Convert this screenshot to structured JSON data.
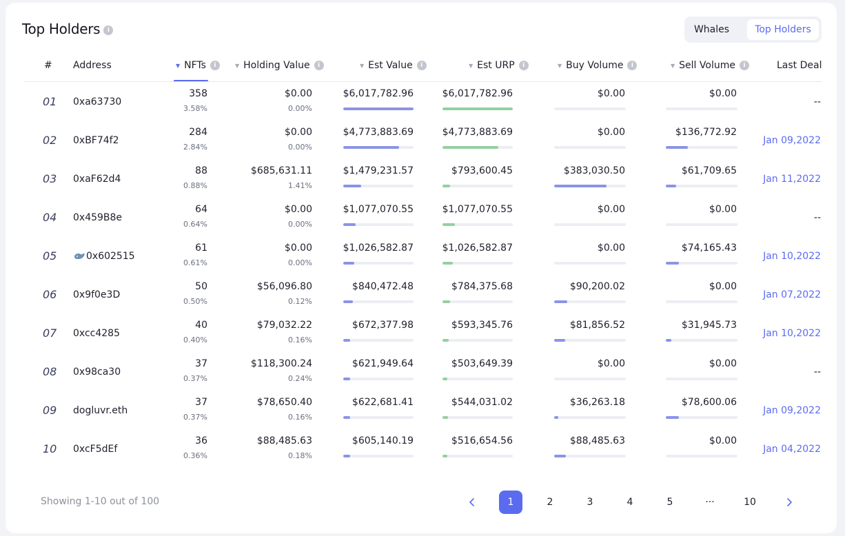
{
  "header": {
    "title": "Top Holders",
    "tabs": [
      {
        "label": "Whales",
        "active": false
      },
      {
        "label": "Top Holders",
        "active": true
      }
    ]
  },
  "columns": {
    "rank": "#",
    "address": "Address",
    "nfts": "NFTs",
    "holding_value": "Holding Value",
    "est_value": "Est Value",
    "est_urp": "Est URP",
    "buy_volume": "Buy Volume",
    "sell_volume": "Sell Volume",
    "last_deal": "Last Deal",
    "sorted_by": "NFTs"
  },
  "rows": [
    {
      "rank": "01",
      "address": "0xa63730",
      "whale": false,
      "nfts": "358",
      "nfts_pct": "3.58%",
      "holding_value": "$0.00",
      "holding_pct": "0.00%",
      "est_value": "$6,017,782.96",
      "est_value_level": 1.0,
      "est_urp": "$6,017,782.96",
      "est_urp_level": 1.0,
      "buy_volume": "$0.00",
      "buy_level": 0,
      "sell_volume": "$0.00",
      "sell_level": 0,
      "last_deal": "--"
    },
    {
      "rank": "02",
      "address": "0xBF74f2",
      "whale": false,
      "nfts": "284",
      "nfts_pct": "2.84%",
      "holding_value": "$0.00",
      "holding_pct": "0.00%",
      "est_value": "$4,773,883.69",
      "est_value_level": 0.79,
      "est_urp": "$4,773,883.69",
      "est_urp_level": 0.79,
      "buy_volume": "$0.00",
      "buy_level": 0,
      "sell_volume": "$136,772.92",
      "sell_level": 0.31,
      "last_deal": "Jan 09,2022"
    },
    {
      "rank": "03",
      "address": "0xaF62d4",
      "whale": false,
      "nfts": "88",
      "nfts_pct": "0.88%",
      "holding_value": "$685,631.11",
      "holding_pct": "1.41%",
      "est_value": "$1,479,231.57",
      "est_value_level": 0.25,
      "est_urp": "$793,600.45",
      "est_urp_level": 0.11,
      "buy_volume": "$383,030.50",
      "buy_level": 0.73,
      "sell_volume": "$61,709.65",
      "sell_level": 0.14,
      "last_deal": "Jan 11,2022"
    },
    {
      "rank": "04",
      "address": "0x459B8e",
      "whale": false,
      "nfts": "64",
      "nfts_pct": "0.64%",
      "holding_value": "$0.00",
      "holding_pct": "0.00%",
      "est_value": "$1,077,070.55",
      "est_value_level": 0.18,
      "est_urp": "$1,077,070.55",
      "est_urp_level": 0.18,
      "buy_volume": "$0.00",
      "buy_level": 0,
      "sell_volume": "$0.00",
      "sell_level": 0,
      "last_deal": "--"
    },
    {
      "rank": "05",
      "address": "0x602515",
      "whale": true,
      "nfts": "61",
      "nfts_pct": "0.61%",
      "holding_value": "$0.00",
      "holding_pct": "0.00%",
      "est_value": "$1,026,582.87",
      "est_value_level": 0.16,
      "est_urp": "$1,026,582.87",
      "est_urp_level": 0.15,
      "buy_volume": "$0.00",
      "buy_level": 0,
      "sell_volume": "$74,165.43",
      "sell_level": 0.18,
      "last_deal": "Jan 10,2022"
    },
    {
      "rank": "06",
      "address": "0x9f0e3D",
      "whale": false,
      "nfts": "50",
      "nfts_pct": "0.50%",
      "holding_value": "$56,096.80",
      "holding_pct": "0.12%",
      "est_value": "$840,472.48",
      "est_value_level": 0.14,
      "est_urp": "$784,375.68",
      "est_urp_level": 0.11,
      "buy_volume": "$90,200.02",
      "buy_level": 0.18,
      "sell_volume": "$0.00",
      "sell_level": 0,
      "last_deal": "Jan 07,2022"
    },
    {
      "rank": "07",
      "address": "0xcc4285",
      "whale": false,
      "nfts": "40",
      "nfts_pct": "0.40%",
      "holding_value": "$79,032.22",
      "holding_pct": "0.16%",
      "est_value": "$672,377.98",
      "est_value_level": 0.1,
      "est_urp": "$593,345.76",
      "est_urp_level": 0.09,
      "buy_volume": "$81,856.52",
      "buy_level": 0.15,
      "sell_volume": "$31,945.73",
      "sell_level": 0.08,
      "last_deal": "Jan 10,2022"
    },
    {
      "rank": "08",
      "address": "0x98ca30",
      "whale": false,
      "nfts": "37",
      "nfts_pct": "0.37%",
      "holding_value": "$118,300.24",
      "holding_pct": "0.24%",
      "est_value": "$621,949.64",
      "est_value_level": 0.1,
      "est_urp": "$503,649.39",
      "est_urp_level": 0.07,
      "buy_volume": "$0.00",
      "buy_level": 0,
      "sell_volume": "$0.00",
      "sell_level": 0,
      "last_deal": "--"
    },
    {
      "rank": "09",
      "address": "dogluvr.eth",
      "whale": false,
      "nfts": "37",
      "nfts_pct": "0.37%",
      "holding_value": "$78,650.40",
      "holding_pct": "0.16%",
      "est_value": "$622,681.41",
      "est_value_level": 0.1,
      "est_urp": "$544,031.02",
      "est_urp_level": 0.08,
      "buy_volume": "$36,263.18",
      "buy_level": 0.06,
      "sell_volume": "$78,600.06",
      "sell_level": 0.18,
      "last_deal": "Jan 09,2022"
    },
    {
      "rank": "10",
      "address": "0xcF5dEf",
      "whale": false,
      "nfts": "36",
      "nfts_pct": "0.36%",
      "holding_value": "$88,485.63",
      "holding_pct": "0.18%",
      "est_value": "$605,140.19",
      "est_value_level": 0.1,
      "est_urp": "$516,654.56",
      "est_urp_level": 0.07,
      "buy_volume": "$88,485.63",
      "buy_level": 0.16,
      "sell_volume": "$0.00",
      "sell_level": 0,
      "last_deal": "Jan 04,2022"
    }
  ],
  "footer": {
    "showing": "Showing 1-10 out of 100",
    "pages": [
      "1",
      "2",
      "3",
      "4",
      "5",
      "···",
      "10"
    ],
    "current_page": "1"
  },
  "colors": {
    "accent": "#5b6bf0",
    "bar_blue": "#8b93e6",
    "bar_green": "#94cfa0",
    "track": "#eceef3"
  },
  "icons": {
    "info": "info-icon",
    "sort": "sort-arrow-icon",
    "whale": "whale-icon",
    "prev": "chevron-left-icon",
    "next": "chevron-right-icon"
  }
}
